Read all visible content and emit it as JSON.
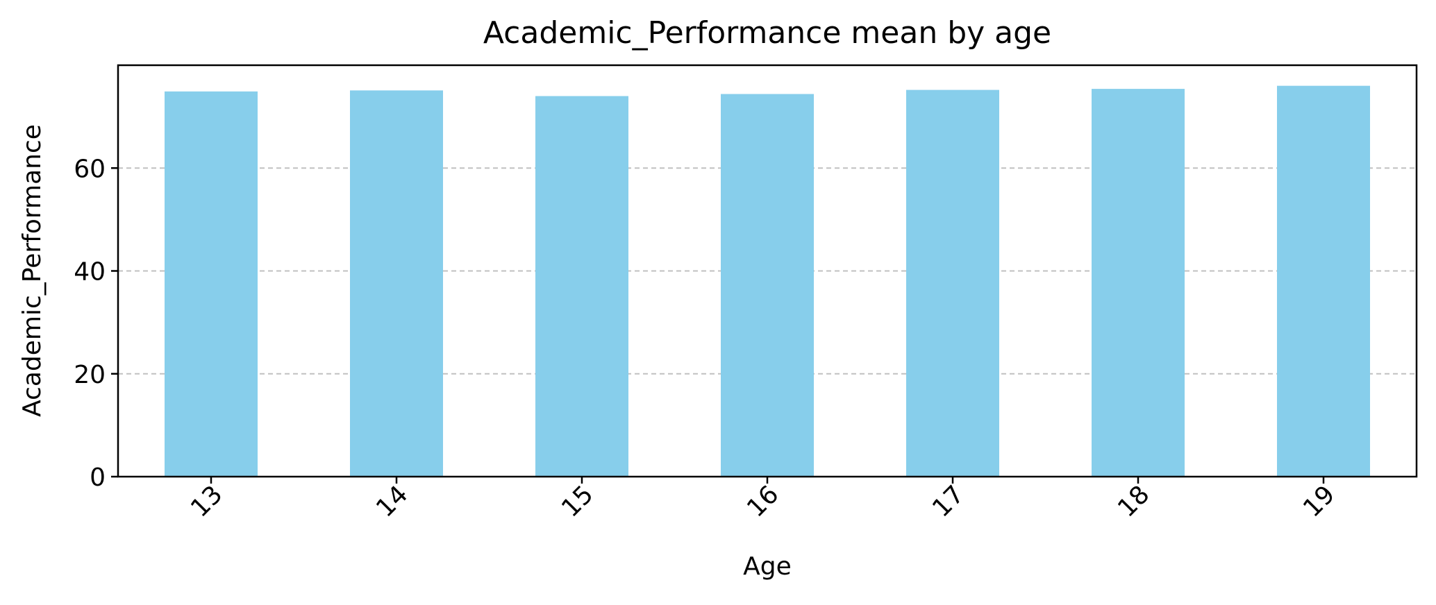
{
  "chart_data": {
    "type": "bar",
    "title": "Academic_Performance mean by age",
    "xlabel": "Age",
    "ylabel": "Academic_Performance",
    "categories": [
      "13",
      "14",
      "15",
      "16",
      "17",
      "18",
      "19"
    ],
    "values": [
      74.9,
      75.1,
      74.0,
      74.4,
      75.2,
      75.4,
      76.0
    ],
    "ylim": [
      0,
      80
    ],
    "yticks": [
      "0",
      "20",
      "40",
      "60"
    ],
    "grid": "horizontal-dashed",
    "legend": "none",
    "bar_color": "#87CEEB"
  }
}
